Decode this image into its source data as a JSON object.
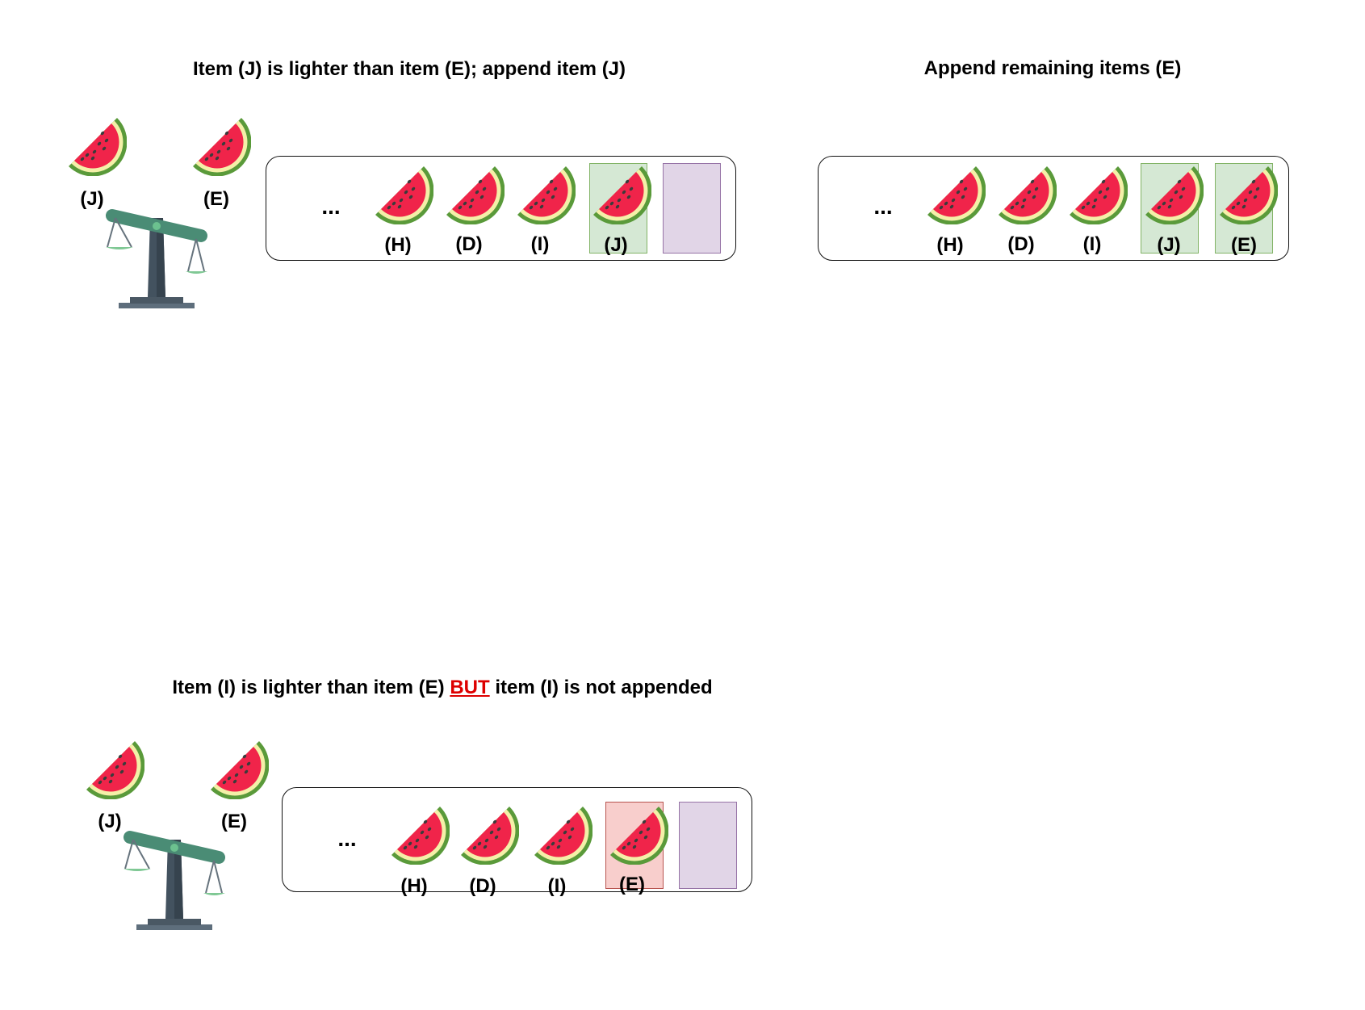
{
  "panels": {
    "top_left": {
      "title": "Item (J) is lighter than item (E); append item (J)",
      "scale_left_label": "(J)",
      "scale_right_label": "(E)",
      "ellipsis": "...",
      "items": [
        "(H)",
        "(D)",
        "(I)",
        "(J)"
      ]
    },
    "top_right": {
      "title": "Append remaining items (E)",
      "ellipsis": "...",
      "items": [
        "(H)",
        "(D)",
        "(I)",
        "(J)",
        "(E)"
      ]
    },
    "bottom_left": {
      "title_part1": "Item (I) is lighter than item (E) ",
      "title_warn": "BUT",
      "title_part2": " item (I) is not appended",
      "scale_left_label": "(J)",
      "scale_right_label": "(E)",
      "ellipsis": "...",
      "items": [
        "(H)",
        "(D)",
        "(I)",
        "(E)"
      ]
    }
  },
  "colors": {
    "appended_slot": "#d5e8d4",
    "rejected_slot": "#f8cecc",
    "empty_slot": "#e1d5e7",
    "warning_text": "#dd0000"
  },
  "icons": {
    "item": "watermelon-icon",
    "compare": "balance-scale-icon"
  }
}
